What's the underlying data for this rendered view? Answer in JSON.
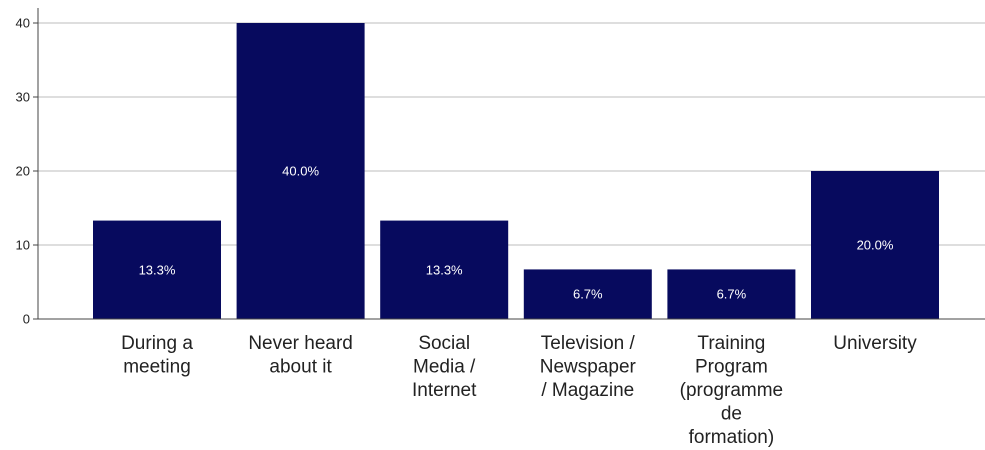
{
  "chart_data": {
    "type": "bar",
    "categories": [
      [
        "During a",
        "meeting"
      ],
      [
        "Never heard",
        "about it"
      ],
      [
        "Social",
        "Media /",
        "Internet"
      ],
      [
        "Television /",
        "Newspaper",
        "/ Magazine"
      ],
      [
        "Training",
        "Program",
        "(programme",
        "de",
        "formation)"
      ],
      [
        "University"
      ]
    ],
    "values": [
      13.3,
      40.0,
      13.3,
      6.7,
      6.7,
      20.0
    ],
    "data_labels": [
      "13.3%",
      "40.0%",
      "13.3%",
      "6.7%",
      "6.7%",
      "20.0%"
    ],
    "yticks": [
      0,
      10,
      20,
      30,
      40
    ],
    "ylim": [
      0,
      40
    ],
    "grid": true,
    "legend": "none",
    "colors": {
      "bar": "#070a5e",
      "grid": "#d3d3d3",
      "axis": "#444444",
      "data_label": "#ffffff"
    }
  }
}
